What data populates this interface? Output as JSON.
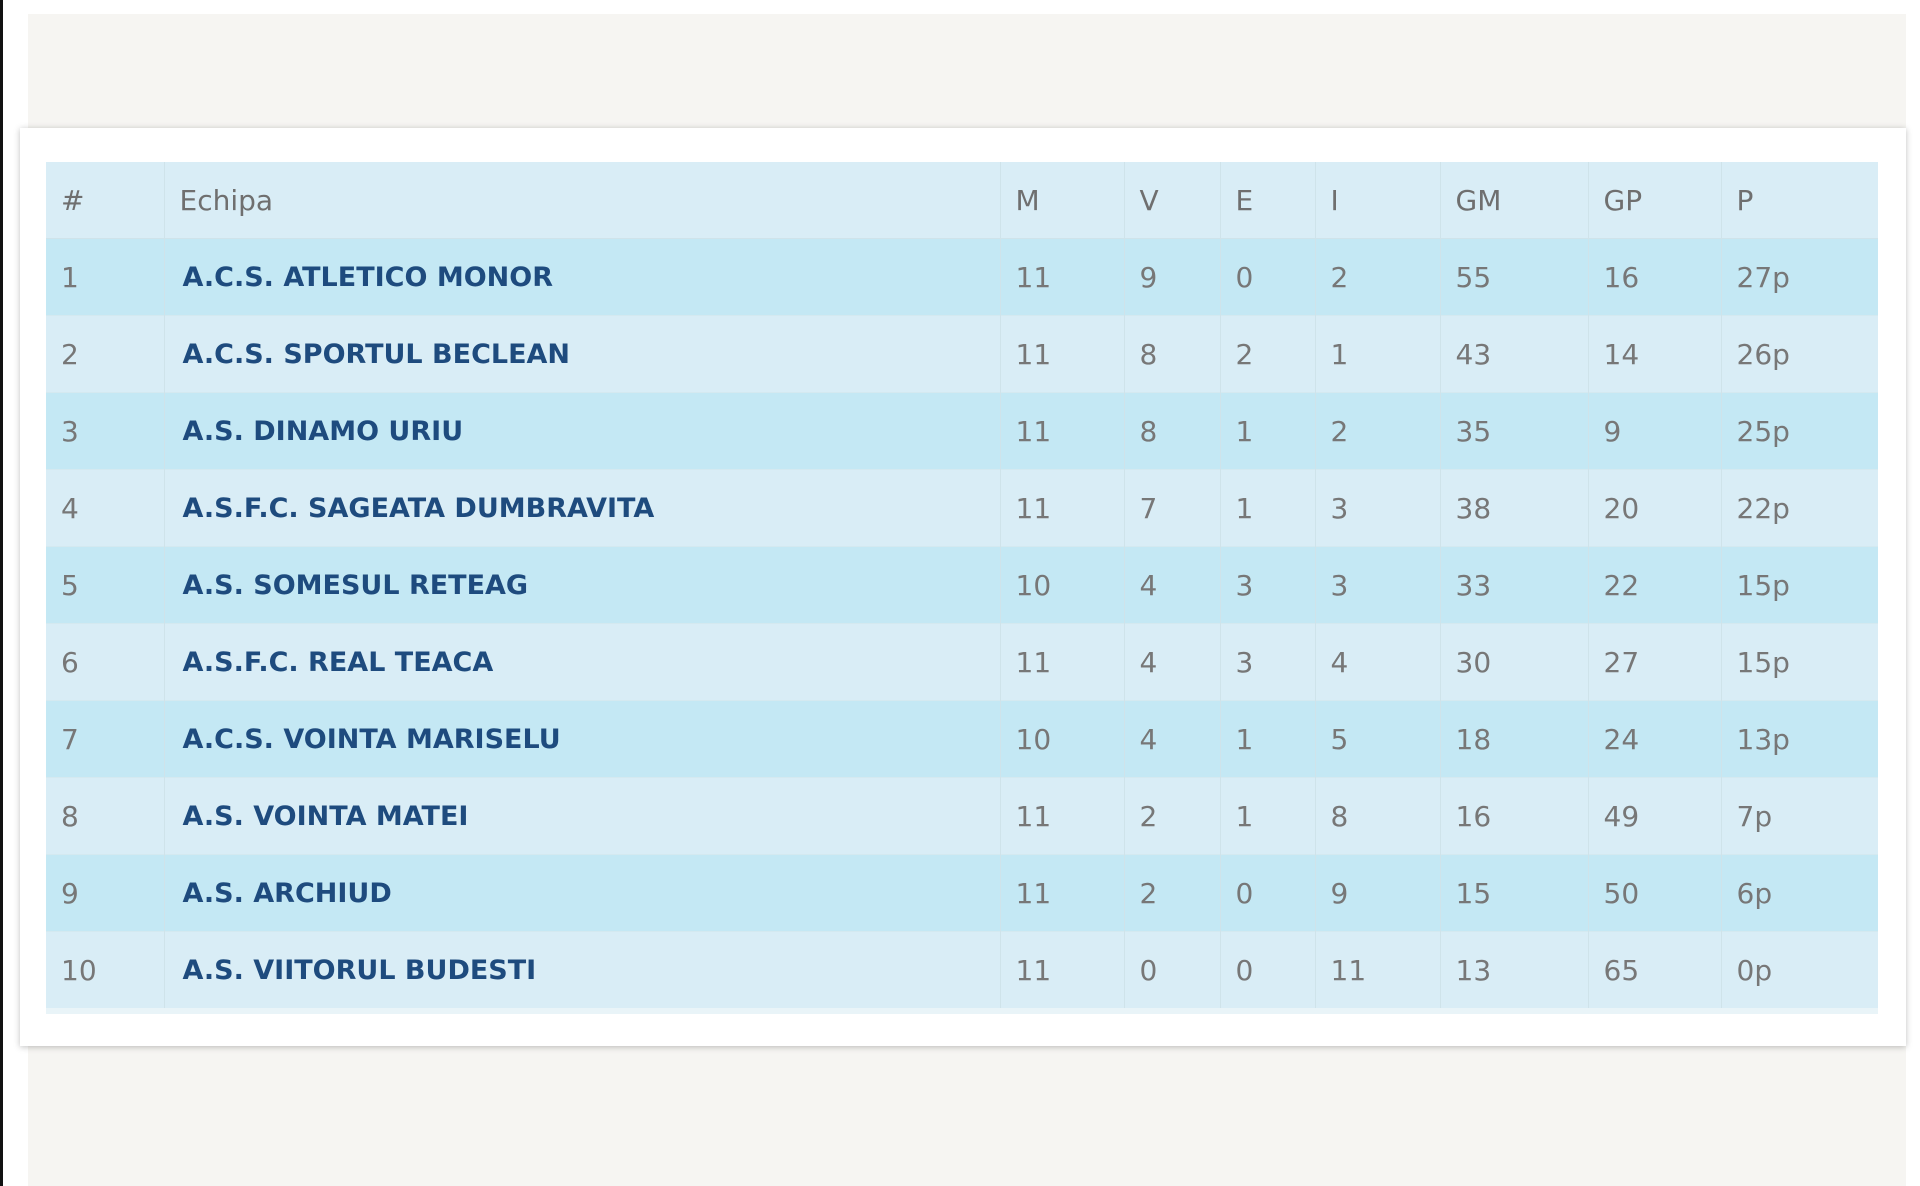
{
  "accent_colors": {
    "team_link": "#1e4b7e",
    "row_odd": "#c4e8f4",
    "row_even": "#d9edf6"
  },
  "standings": {
    "columns": [
      "#",
      "Echipa",
      "M",
      "V",
      "E",
      "I",
      "GM",
      "GP",
      "P"
    ],
    "rows": [
      {
        "pos": "1",
        "team": "A.C.S. ATLETICO MONOR",
        "m": "11",
        "v": "9",
        "e": "0",
        "i": "2",
        "gm": "55",
        "gp": "16",
        "p": "27p"
      },
      {
        "pos": "2",
        "team": "A.C.S. SPORTUL BECLEAN",
        "m": "11",
        "v": "8",
        "e": "2",
        "i": "1",
        "gm": "43",
        "gp": "14",
        "p": "26p"
      },
      {
        "pos": "3",
        "team": "A.S. DINAMO URIU",
        "m": "11",
        "v": "8",
        "e": "1",
        "i": "2",
        "gm": "35",
        "gp": "9",
        "p": "25p"
      },
      {
        "pos": "4",
        "team": "A.S.F.C. SAGEATA DUMBRAVITA",
        "m": "11",
        "v": "7",
        "e": "1",
        "i": "3",
        "gm": "38",
        "gp": "20",
        "p": "22p"
      },
      {
        "pos": "5",
        "team": "A.S. SOMESUL RETEAG",
        "m": "10",
        "v": "4",
        "e": "3",
        "i": "3",
        "gm": "33",
        "gp": "22",
        "p": "15p"
      },
      {
        "pos": "6",
        "team": "A.S.F.C. REAL TEACA",
        "m": "11",
        "v": "4",
        "e": "3",
        "i": "4",
        "gm": "30",
        "gp": "27",
        "p": "15p"
      },
      {
        "pos": "7",
        "team": "A.C.S. VOINTA MARISELU",
        "m": "10",
        "v": "4",
        "e": "1",
        "i": "5",
        "gm": "18",
        "gp": "24",
        "p": "13p"
      },
      {
        "pos": "8",
        "team": "A.S. VOINTA MATEI",
        "m": "11",
        "v": "2",
        "e": "1",
        "i": "8",
        "gm": "16",
        "gp": "49",
        "p": "7p"
      },
      {
        "pos": "9",
        "team": "A.S. ARCHIUD",
        "m": "11",
        "v": "2",
        "e": "0",
        "i": "9",
        "gm": "15",
        "gp": "50",
        "p": "6p"
      },
      {
        "pos": "10",
        "team": "A.S. VIITORUL BUDESTI",
        "m": "11",
        "v": "0",
        "e": "0",
        "i": "11",
        "gm": "13",
        "gp": "65",
        "p": "0p"
      }
    ]
  }
}
